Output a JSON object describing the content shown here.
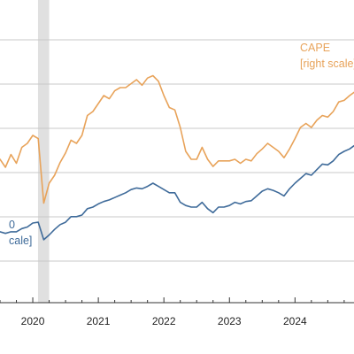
{
  "chart_data": {
    "type": "line",
    "title": "",
    "xlabel": "",
    "ylabel": "",
    "xlim": [
      2019.5,
      2024.9
    ],
    "x_ticks": [
      {
        "value": 2020,
        "label": "2020"
      },
      {
        "value": 2021,
        "label": "2021"
      },
      {
        "value": 2022,
        "label": "2022"
      },
      {
        "value": 2023,
        "label": "2023"
      },
      {
        "value": 2024,
        "label": "2024"
      }
    ],
    "grid": true,
    "legend": "none",
    "recession_shading": {
      "start": 2020.08,
      "end": 2020.25,
      "color": "#e0e0e0"
    },
    "annotations": [
      {
        "series": "CAPE",
        "lines": [
          "CAPE",
          "[right scale]"
        ],
        "color": "#e8a35a"
      },
      {
        "series": "left",
        "lines": [
          "0",
          "cale]"
        ],
        "color": "#3f6b9a"
      }
    ],
    "series": [
      {
        "name": "CAPE",
        "axis": "right",
        "color": "#e8a35a",
        "ylim": [
          10,
          48
        ],
        "points": [
          [
            2019.5,
            28.0
          ],
          [
            2019.583,
            27.0
          ],
          [
            2019.667,
            28.6
          ],
          [
            2019.75,
            27.5
          ],
          [
            2019.833,
            29.5
          ],
          [
            2019.917,
            30.0
          ],
          [
            2020.0,
            31.0
          ],
          [
            2020.083,
            30.6
          ],
          [
            2020.167,
            22.5
          ],
          [
            2020.25,
            25.0
          ],
          [
            2020.333,
            26.0
          ],
          [
            2020.417,
            27.6
          ],
          [
            2020.5,
            28.8
          ],
          [
            2020.583,
            30.4
          ],
          [
            2020.667,
            30.0
          ],
          [
            2020.75,
            31.0
          ],
          [
            2020.833,
            33.5
          ],
          [
            2020.917,
            34.0
          ],
          [
            2021.0,
            35.0
          ],
          [
            2021.083,
            36.0
          ],
          [
            2021.167,
            35.6
          ],
          [
            2021.25,
            36.6
          ],
          [
            2021.333,
            37.0
          ],
          [
            2021.417,
            37.0
          ],
          [
            2021.5,
            37.5
          ],
          [
            2021.583,
            38.0
          ],
          [
            2021.667,
            37.3
          ],
          [
            2021.75,
            38.2
          ],
          [
            2021.833,
            38.5
          ],
          [
            2021.917,
            37.8
          ],
          [
            2022.0,
            36.0
          ],
          [
            2022.083,
            34.5
          ],
          [
            2022.167,
            34.2
          ],
          [
            2022.25,
            32.0
          ],
          [
            2022.333,
            29.0
          ],
          [
            2022.417,
            28.0
          ],
          [
            2022.5,
            28.0
          ],
          [
            2022.583,
            29.5
          ],
          [
            2022.667,
            28.0
          ],
          [
            2022.75,
            27.1
          ],
          [
            2022.833,
            27.8
          ],
          [
            2022.917,
            27.8
          ],
          [
            2023.0,
            27.8
          ],
          [
            2023.083,
            28.0
          ],
          [
            2023.167,
            27.5
          ],
          [
            2023.25,
            28.0
          ],
          [
            2023.333,
            27.8
          ],
          [
            2023.417,
            28.7
          ],
          [
            2023.5,
            29.3
          ],
          [
            2023.583,
            30.0
          ],
          [
            2023.667,
            29.5
          ],
          [
            2023.75,
            29.0
          ],
          [
            2023.833,
            28.2
          ],
          [
            2023.917,
            29.3
          ],
          [
            2024.0,
            30.6
          ],
          [
            2024.083,
            32.0
          ],
          [
            2024.167,
            32.5
          ],
          [
            2024.25,
            32.0
          ],
          [
            2024.333,
            32.9
          ],
          [
            2024.417,
            33.5
          ],
          [
            2024.5,
            33.3
          ],
          [
            2024.583,
            34.0
          ],
          [
            2024.667,
            35.2
          ],
          [
            2024.75,
            35.4
          ],
          [
            2024.833,
            36.0
          ],
          [
            2024.9,
            36.4
          ]
        ]
      },
      {
        "name": "",
        "axis": "left",
        "color": "#3f6b9a",
        "ylim": [
          10,
          48
        ],
        "points": [
          [
            2019.5,
            18.9
          ],
          [
            2019.583,
            18.7
          ],
          [
            2019.667,
            18.9
          ],
          [
            2019.75,
            18.9
          ],
          [
            2019.833,
            19.3
          ],
          [
            2019.917,
            19.5
          ],
          [
            2020.0,
            20.0
          ],
          [
            2020.083,
            20.1
          ],
          [
            2020.167,
            17.9
          ],
          [
            2020.25,
            18.5
          ],
          [
            2020.333,
            19.2
          ],
          [
            2020.417,
            19.8
          ],
          [
            2020.5,
            20.1
          ],
          [
            2020.583,
            20.8
          ],
          [
            2020.667,
            20.8
          ],
          [
            2020.75,
            21.0
          ],
          [
            2020.833,
            21.8
          ],
          [
            2020.917,
            22.0
          ],
          [
            2021.0,
            22.4
          ],
          [
            2021.083,
            22.7
          ],
          [
            2021.167,
            22.9
          ],
          [
            2021.25,
            23.2
          ],
          [
            2021.333,
            23.5
          ],
          [
            2021.417,
            23.8
          ],
          [
            2021.5,
            24.2
          ],
          [
            2021.583,
            24.4
          ],
          [
            2021.667,
            24.3
          ],
          [
            2021.75,
            24.6
          ],
          [
            2021.833,
            25.0
          ],
          [
            2021.917,
            24.6
          ],
          [
            2022.0,
            24.2
          ],
          [
            2022.083,
            23.8
          ],
          [
            2022.167,
            23.8
          ],
          [
            2022.25,
            22.6
          ],
          [
            2022.333,
            22.2
          ],
          [
            2022.417,
            22.0
          ],
          [
            2022.5,
            22.0
          ],
          [
            2022.583,
            22.6
          ],
          [
            2022.667,
            21.8
          ],
          [
            2022.75,
            21.3
          ],
          [
            2022.833,
            22.0
          ],
          [
            2022.917,
            22.0
          ],
          [
            2023.0,
            22.2
          ],
          [
            2023.083,
            22.6
          ],
          [
            2023.167,
            22.4
          ],
          [
            2023.25,
            22.7
          ],
          [
            2023.333,
            22.8
          ],
          [
            2023.417,
            23.4
          ],
          [
            2023.5,
            24.0
          ],
          [
            2023.583,
            24.3
          ],
          [
            2023.667,
            24.1
          ],
          [
            2023.75,
            23.8
          ],
          [
            2023.833,
            23.4
          ],
          [
            2023.917,
            24.3
          ],
          [
            2024.0,
            25.0
          ],
          [
            2024.083,
            25.6
          ],
          [
            2024.167,
            26.2
          ],
          [
            2024.25,
            26.0
          ],
          [
            2024.333,
            26.7
          ],
          [
            2024.417,
            27.4
          ],
          [
            2024.5,
            27.3
          ],
          [
            2024.583,
            27.8
          ],
          [
            2024.667,
            28.6
          ],
          [
            2024.75,
            29.0
          ],
          [
            2024.833,
            29.3
          ],
          [
            2024.9,
            29.7
          ]
        ]
      }
    ]
  }
}
